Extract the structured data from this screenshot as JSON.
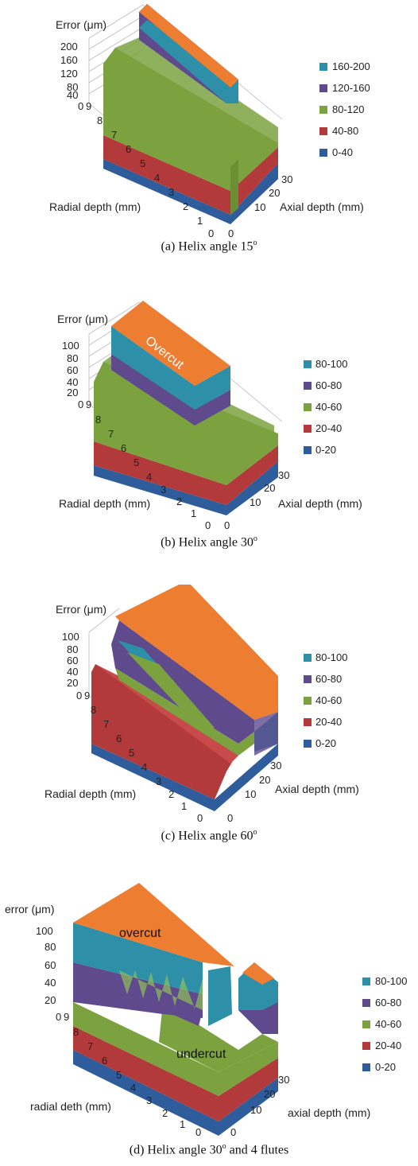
{
  "colors": {
    "top": "#ED7D31",
    "c80_100": "#2E8FA8",
    "c60_80": "#5E4A8C",
    "c40_60": "#7BA23F",
    "c20_40": "#B23A3A",
    "c0_20": "#2F5C9A",
    "grid": "#BBBBBB"
  },
  "captions": [
    {
      "prefix": "(a)  Helix angle 15",
      "sup": "o",
      "suffix": ""
    },
    {
      "prefix": "(b)  Helix angle 30",
      "sup": "o",
      "suffix": ""
    },
    {
      "prefix": "(c)  Helix angle 60",
      "sup": "o",
      "suffix": ""
    },
    {
      "prefix": "(d) Helix angle 30",
      "sup": "o",
      "suffix": " and 4 flutes"
    }
  ],
  "chart_data": [
    {
      "type": "surface",
      "zlabel": "Error (μm)",
      "xlabel": "Radial depth (mm)",
      "ylabel": "Axial depth (mm)",
      "z_ticks": [
        "200",
        "160",
        "120",
        "80",
        "40",
        "0"
      ],
      "x_ticks": [
        "9",
        "8",
        "7",
        "6",
        "5",
        "4",
        "3",
        "2",
        "1",
        "0"
      ],
      "y_ticks": [
        "0",
        "10",
        "20",
        "30"
      ],
      "zlim": [
        0,
        200
      ],
      "legend": [
        "160-200",
        "120-160",
        "80-120",
        "40-80",
        "0-40"
      ],
      "annotations": []
    },
    {
      "type": "surface",
      "zlabel": "Error (μm)",
      "xlabel": "Radial depth (mm)",
      "ylabel": "Axial depth (mm)",
      "z_ticks": [
        "100",
        "80",
        "60",
        "40",
        "20",
        "0"
      ],
      "x_ticks": [
        "9",
        "8",
        "7",
        "6",
        "5",
        "4",
        "3",
        "2",
        "1",
        "0"
      ],
      "y_ticks": [
        "0",
        "10",
        "20",
        "30"
      ],
      "zlim": [
        0,
        100
      ],
      "legend": [
        "80-100",
        "60-80",
        "40-60",
        "20-40",
        "0-20"
      ],
      "annotations": [
        "Overcut"
      ]
    },
    {
      "type": "surface",
      "zlabel": "Error (μm)",
      "xlabel": "Radial depth (mm)",
      "ylabel": "Axial depth (mm)",
      "z_ticks": [
        "100",
        "80",
        "60",
        "40",
        "20",
        "0"
      ],
      "x_ticks": [
        "9",
        "8",
        "7",
        "6",
        "5",
        "4",
        "3",
        "2",
        "1",
        "0"
      ],
      "y_ticks": [
        "0",
        "10",
        "20",
        "30"
      ],
      "zlim": [
        0,
        100
      ],
      "legend": [
        "80-100",
        "60-80",
        "40-60",
        "20-40",
        "0-20"
      ],
      "annotations": []
    },
    {
      "type": "surface",
      "zlabel": "error (μm)",
      "xlabel": "radial deth (mm)",
      "ylabel": "axial depth (mm)",
      "z_ticks": [
        "100",
        "80",
        "60",
        "40",
        "20",
        "0"
      ],
      "x_ticks": [
        "9",
        "8",
        "7",
        "6",
        "5",
        "4",
        "3",
        "2",
        "1",
        "0"
      ],
      "y_ticks": [
        "0",
        "10",
        "20",
        "30"
      ],
      "zlim": [
        0,
        100
      ],
      "legend": [
        "80-100",
        "60-80",
        "40-60",
        "20-40",
        "0-20"
      ],
      "annotations": [
        "overcut",
        "undercut"
      ]
    }
  ]
}
